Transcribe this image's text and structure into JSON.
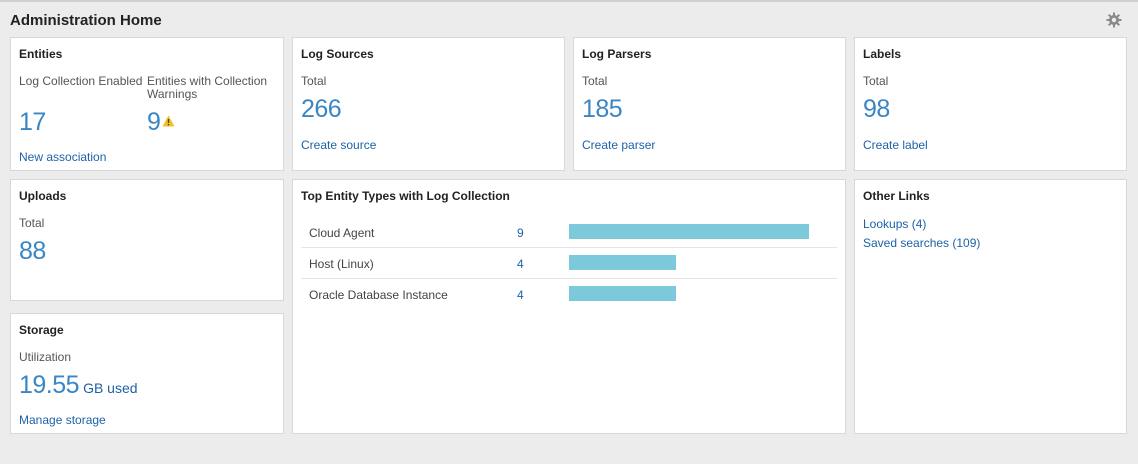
{
  "page": {
    "title": "Administration Home",
    "settings_icon": "gear-icon"
  },
  "entities": {
    "title": "Entities",
    "enabled_label": "Log Collection Enabled",
    "enabled_value": "17",
    "warnings_label": "Entities with Collection Warnings",
    "warnings_value": "9",
    "warnings_icon": "warning-icon",
    "link": "New association"
  },
  "log_sources": {
    "title": "Log Sources",
    "label": "Total",
    "value": "266",
    "link": "Create source"
  },
  "log_parsers": {
    "title": "Log Parsers",
    "label": "Total",
    "value": "185",
    "link": "Create parser"
  },
  "labels": {
    "title": "Labels",
    "label": "Total",
    "value": "98",
    "link": "Create label"
  },
  "uploads": {
    "title": "Uploads",
    "label": "Total",
    "value": "88"
  },
  "storage": {
    "title": "Storage",
    "label": "Utilization",
    "value": "19.55",
    "unit": "GB used",
    "link": "Manage storage"
  },
  "top_entity_types": {
    "title": "Top Entity Types with Log Collection",
    "bar_color": "#7cc9db",
    "max_count": 9,
    "rows": [
      {
        "name": "Cloud Agent",
        "count": "9"
      },
      {
        "name": "Host (Linux)",
        "count": "4"
      },
      {
        "name": "Oracle Database Instance",
        "count": "4"
      }
    ]
  },
  "other_links": {
    "title": "Other Links",
    "links": [
      "Lookups (4)",
      "Saved searches (109)"
    ]
  }
}
